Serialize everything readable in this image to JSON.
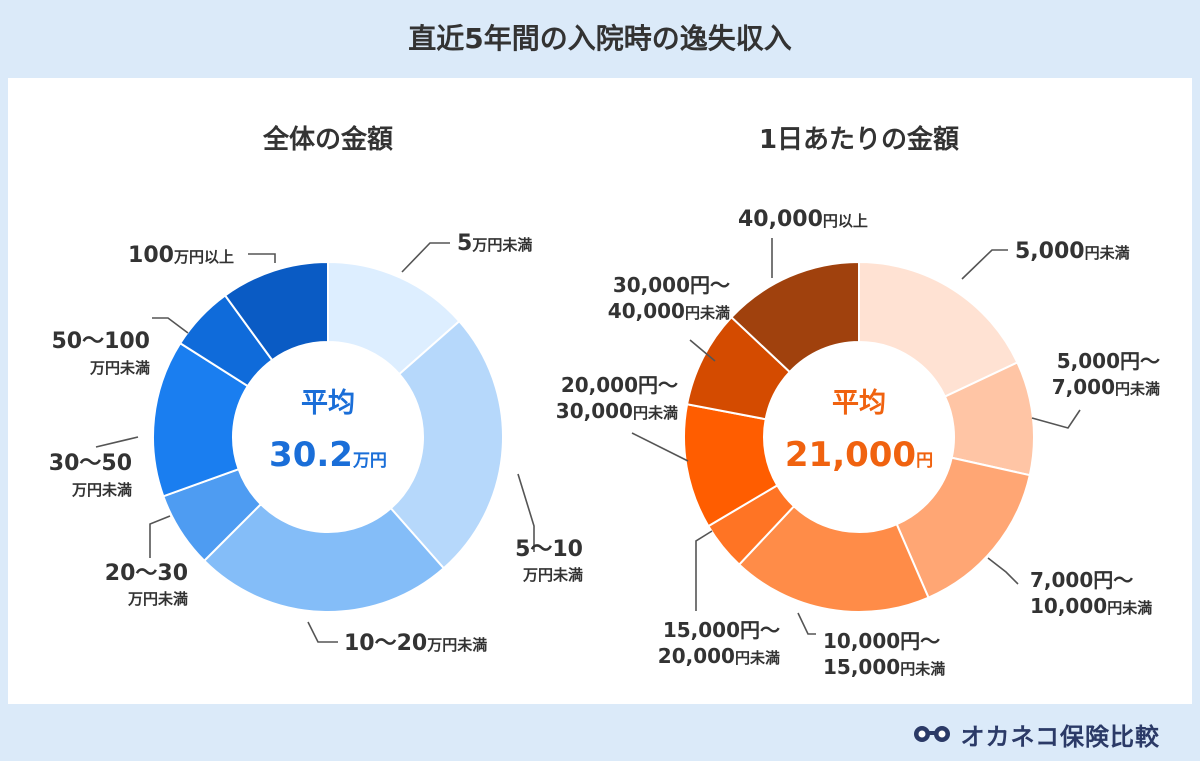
{
  "page_title": "直近5年間の入院時の逸失収入",
  "colors": {
    "background": "#dbeaf9",
    "panel": "#ffffff",
    "blue_accent": "#1a6ed8",
    "orange_accent": "#f0620f",
    "leader_line": "#555555"
  },
  "logo": {
    "text": "オカネコ保険比較",
    "icon": "glasses-icon"
  },
  "chart_data": [
    {
      "type": "pie",
      "variant": "donut",
      "title": "全体の金額",
      "center_label": "平均",
      "center_value": "30.2",
      "center_unit": "万円",
      "categories": [
        "5万円未満",
        "5〜10万円未満",
        "10〜20万円未満",
        "20〜30万円未満",
        "30〜50万円未満",
        "50〜100万円未満",
        "100万円以上"
      ],
      "values": [
        13.5,
        25.0,
        24.0,
        7.0,
        14.5,
        6.0,
        10.0
      ],
      "colors": [
        "#ddeeff",
        "#b6d8fb",
        "#84bdf8",
        "#4e9cf2",
        "#1a7ef0",
        "#0f6bda",
        "#0a5bc4"
      ],
      "labels": [
        {
          "main": "5",
          "unit": "万円未満"
        },
        {
          "main": "5〜10",
          "unit": "万円未満"
        },
        {
          "main": "10〜20",
          "unit": "万円未満"
        },
        {
          "main": "20〜30",
          "unit": "万円未満"
        },
        {
          "main": "30〜50",
          "unit": "万円未満"
        },
        {
          "main": "50〜100",
          "unit": "万円未満"
        },
        {
          "main": "100",
          "unit": "万円以上"
        }
      ]
    },
    {
      "type": "pie",
      "variant": "donut",
      "title": "1日あたりの金額",
      "center_label": "平均",
      "center_value": "21,000",
      "center_unit": "円",
      "categories": [
        "5,000円未満",
        "5,000円〜7,000円未満",
        "7,000円〜10,000円未満",
        "10,000円〜15,000円未満",
        "15,000円〜20,000円未満",
        "20,000円〜30,000円未満",
        "30,000円〜40,000円未満",
        "40,000円以上"
      ],
      "values": [
        18.0,
        10.5,
        15.0,
        18.5,
        4.5,
        11.5,
        9.0,
        13.0
      ],
      "colors": [
        "#ffe2d3",
        "#ffc5a5",
        "#ffa674",
        "#ff8c48",
        "#ff7424",
        "#ff5d00",
        "#d44b00",
        "#a0410d"
      ],
      "labels": [
        {
          "main": "5,000",
          "unit": "円未満"
        },
        {
          "main": "5,000円〜",
          "main2": "7,000",
          "unit": "円未満"
        },
        {
          "main": "7,000円〜",
          "main2": "10,000",
          "unit": "円未満"
        },
        {
          "main": "10,000円〜",
          "main2": "15,000",
          "unit": "円未満"
        },
        {
          "main": "15,000円〜",
          "main2": "20,000",
          "unit": "円未満"
        },
        {
          "main": "20,000円〜",
          "main2": "30,000",
          "unit": "円未満"
        },
        {
          "main": "30,000円〜",
          "main2": "40,000",
          "unit": "円未満"
        },
        {
          "main": "40,000",
          "unit": "円以上"
        }
      ]
    }
  ]
}
